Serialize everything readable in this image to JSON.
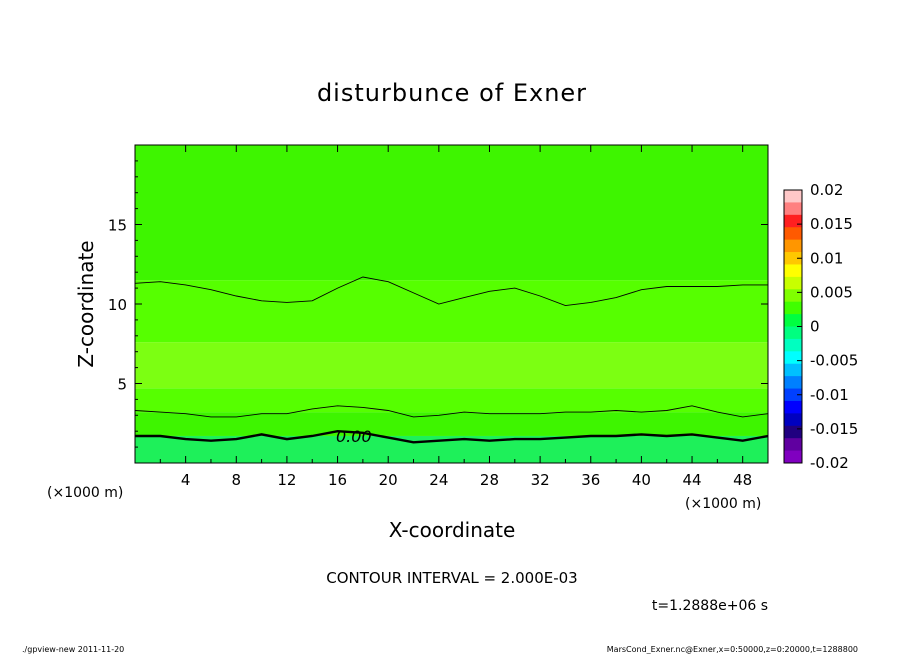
{
  "chart_data": {
    "type": "heatmap",
    "title": "disturbunce of Exner",
    "xlabel": "X-coordinate",
    "ylabel": "Z-coordinate",
    "x_unit_left": "(×1000 m)",
    "x_unit_right": "(×1000 m)",
    "xlim": [
      0,
      50
    ],
    "ylim": [
      0,
      20
    ],
    "x_ticks": [
      4,
      8,
      12,
      16,
      20,
      24,
      28,
      32,
      36,
      40,
      44,
      48
    ],
    "y_ticks": [
      5,
      10,
      15
    ],
    "contour_label": "0.00",
    "contour_interval_text": "CONTOUR INTERVAL = 2.000E-03",
    "time_text": "t=1.2888e+06 s",
    "colorbar": {
      "ticks": [
        "0.02",
        "0.015",
        "0.01",
        "0.005",
        "0",
        "-0.005",
        "-0.01",
        "-0.015",
        "-0.02"
      ],
      "levels": [
        0.02,
        0.015,
        0.01,
        0.005,
        0,
        -0.005,
        -0.01,
        -0.015,
        -0.02
      ],
      "colors": [
        "#ffc8c8",
        "#ff8080",
        "#ff2020",
        "#ff5a00",
        "#ff9600",
        "#ffc800",
        "#ffff00",
        "#c8ff00",
        "#80ff00",
        "#40ff00",
        "#00ff40",
        "#00ff80",
        "#00ffc0",
        "#00ffff",
        "#00c0ff",
        "#0080ff",
        "#0040ff",
        "#0000ff",
        "#0000c0",
        "#200080",
        "#6000a0",
        "#8000c0"
      ]
    },
    "field_bands": [
      {
        "z_range": [
          0,
          1.7
        ],
        "level": -0.001,
        "color": "#1ef05a"
      },
      {
        "z_range": [
          1.7,
          3.2
        ],
        "level": 0.001,
        "color": "#3ef500"
      },
      {
        "z_range": [
          3.2,
          4.7
        ],
        "level": 0.003,
        "color": "#56ff00"
      },
      {
        "z_range": [
          4.7,
          7.6
        ],
        "level": 0.005,
        "color": "#7cff12"
      },
      {
        "z_range": [
          7.6,
          11.5
        ],
        "level": 0.003,
        "color": "#56ff00"
      },
      {
        "z_range": [
          11.5,
          20
        ],
        "level": 0.001,
        "color": "#3ef500"
      }
    ],
    "contours": [
      {
        "level": 0.0,
        "bold": true,
        "x": [
          0,
          2,
          4,
          6,
          8,
          10,
          12,
          14,
          16,
          18,
          20,
          22,
          24,
          26,
          28,
          30,
          32,
          34,
          36,
          38,
          40,
          42,
          44,
          46,
          48,
          50
        ],
        "z": [
          1.7,
          1.7,
          1.5,
          1.4,
          1.5,
          1.8,
          1.5,
          1.7,
          2.0,
          1.9,
          1.6,
          1.3,
          1.4,
          1.5,
          1.4,
          1.5,
          1.5,
          1.6,
          1.7,
          1.7,
          1.8,
          1.7,
          1.8,
          1.6,
          1.4,
          1.7
        ]
      },
      {
        "level": 0.002,
        "bold": false,
        "x": [
          0,
          2,
          4,
          6,
          8,
          10,
          12,
          14,
          16,
          18,
          20,
          22,
          24,
          26,
          28,
          30,
          32,
          34,
          36,
          38,
          40,
          42,
          44,
          46,
          48,
          50
        ],
        "z": [
          3.3,
          3.2,
          3.1,
          2.9,
          2.9,
          3.1,
          3.1,
          3.4,
          3.6,
          3.5,
          3.3,
          2.9,
          3.0,
          3.2,
          3.1,
          3.1,
          3.1,
          3.2,
          3.2,
          3.3,
          3.2,
          3.3,
          3.6,
          3.2,
          2.9,
          3.1
        ]
      },
      {
        "level": 0.002,
        "bold": false,
        "x": [
          0,
          2,
          4,
          6,
          8,
          10,
          12,
          14,
          16,
          18,
          20,
          22,
          24,
          26,
          28,
          30,
          32,
          34,
          36,
          38,
          40,
          42,
          44,
          46,
          48,
          50
        ],
        "z": [
          11.3,
          11.4,
          11.2,
          10.9,
          10.5,
          10.2,
          10.1,
          10.2,
          11.0,
          11.7,
          11.4,
          10.7,
          10.0,
          10.4,
          10.8,
          11.0,
          10.5,
          9.9,
          10.1,
          10.4,
          10.9,
          11.1,
          11.1,
          11.1,
          11.2,
          11.2
        ]
      }
    ]
  },
  "footer": {
    "left": "./gpview-new   2011-11-20",
    "right": "MarsCond_Exner.nc@Exner,x=0:50000,z=0:20000,t=1288800"
  }
}
